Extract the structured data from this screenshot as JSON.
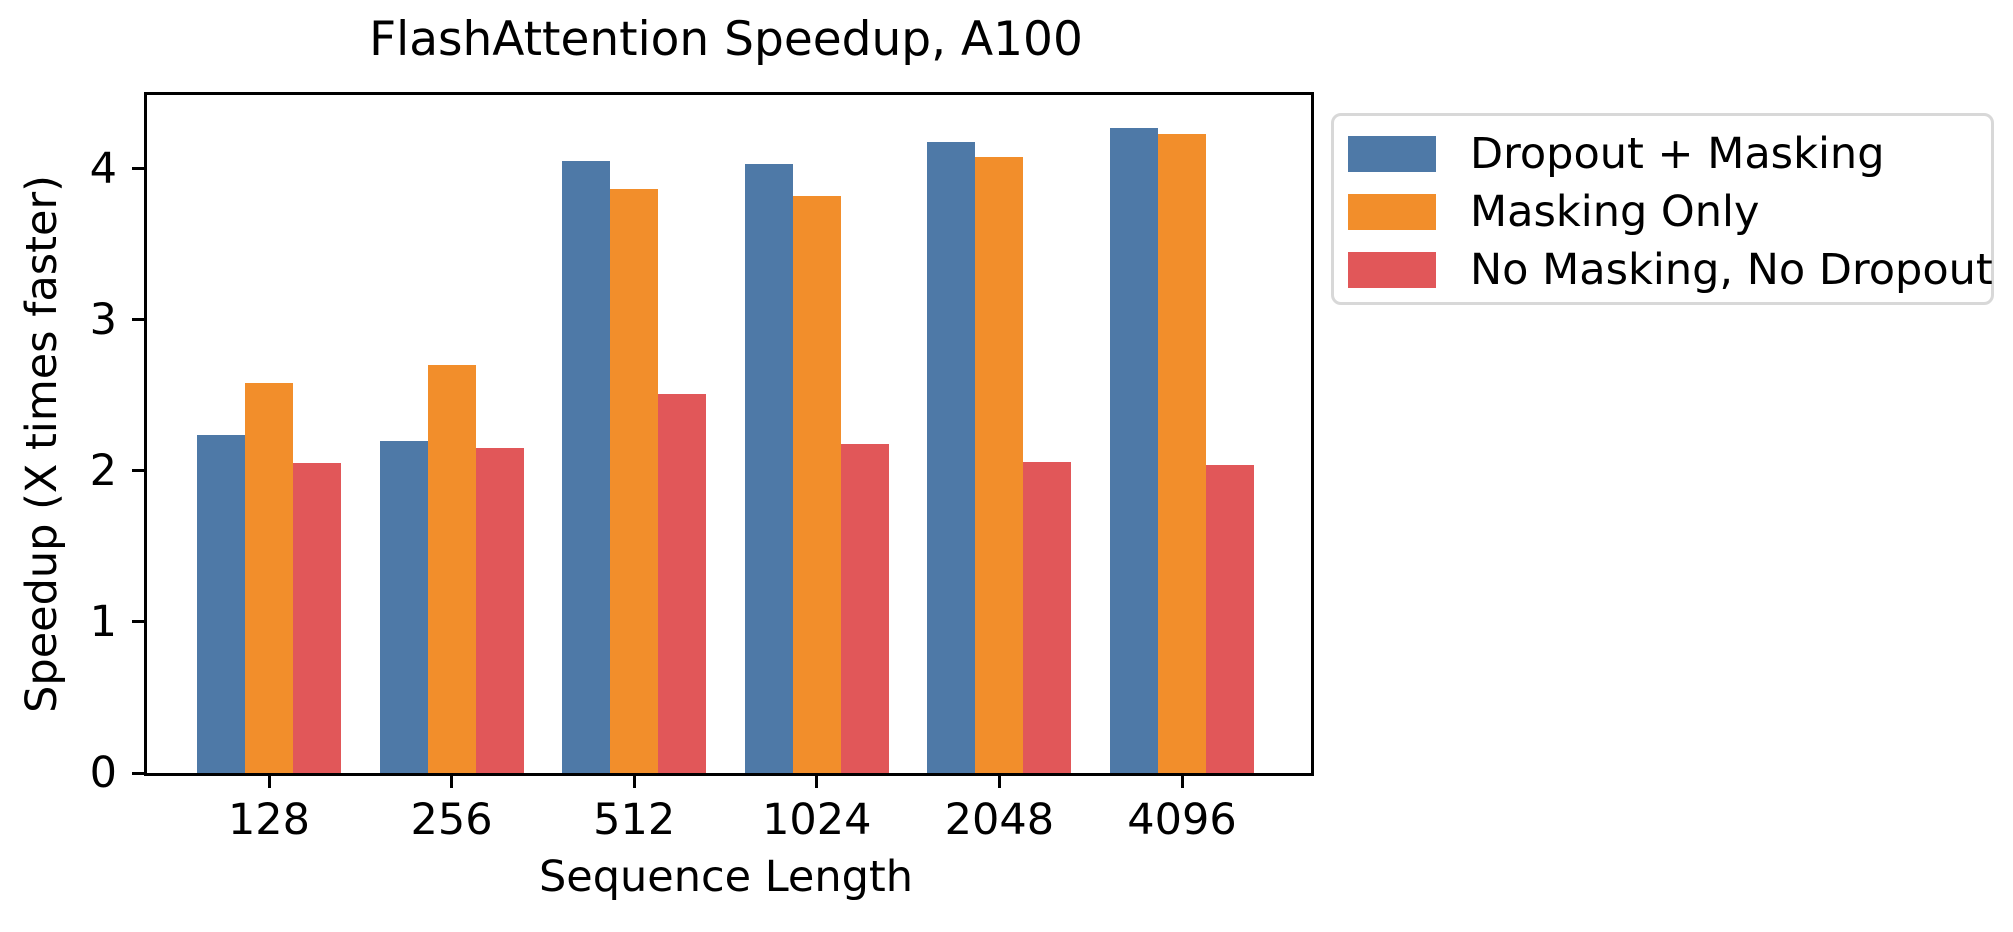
{
  "chart_data": {
    "type": "bar",
    "title": "FlashAttention Speedup, A100",
    "xlabel": "Sequence Length",
    "ylabel": "Speedup (X times faster)",
    "categories": [
      "128",
      "256",
      "512",
      "1024",
      "2048",
      "4096"
    ],
    "series": [
      {
        "name": "Dropout + Masking",
        "color": "#4e79a7",
        "values": [
          2.24,
          2.2,
          4.05,
          4.03,
          4.18,
          4.27
        ]
      },
      {
        "name": "Masking Only",
        "color": "#f28e2b",
        "values": [
          2.58,
          2.7,
          3.87,
          3.82,
          4.08,
          4.23
        ]
      },
      {
        "name": "No Masking, No Dropout",
        "color": "#e15759",
        "values": [
          2.05,
          2.15,
          2.51,
          2.18,
          2.06,
          2.04
        ]
      }
    ],
    "yticks": [
      0,
      1,
      2,
      3,
      4
    ],
    "ylim": [
      0,
      4.49
    ],
    "grid": false,
    "legend_position": "outside-right",
    "axis_color": "#000000",
    "legend_border_color": "#d8d8d8"
  }
}
